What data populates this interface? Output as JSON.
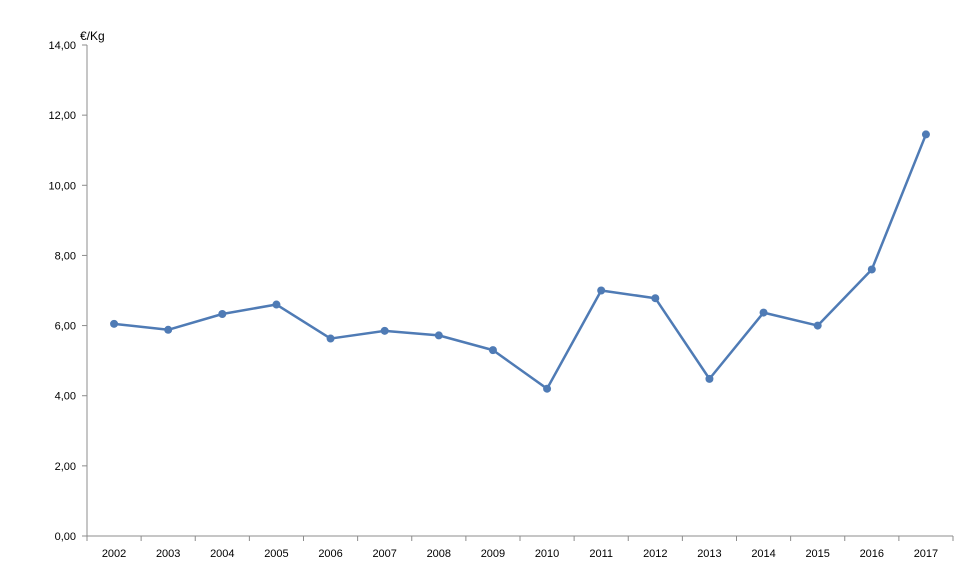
{
  "chart_data": {
    "type": "line",
    "title": "",
    "xlabel": "",
    "ylabel": "€/Kg",
    "ylim": [
      0,
      14
    ],
    "yticks": [
      "0,00",
      "2,00",
      "4,00",
      "6,00",
      "8,00",
      "10,00",
      "12,00",
      "14,00"
    ],
    "categories": [
      "2002",
      "2003",
      "2004",
      "2005",
      "2006",
      "2007",
      "2008",
      "2009",
      "2010",
      "2011",
      "2012",
      "2013",
      "2014",
      "2015",
      "2016",
      "2017"
    ],
    "series": [
      {
        "values": [
          6.05,
          5.88,
          6.33,
          6.6,
          5.63,
          5.85,
          5.72,
          5.3,
          4.2,
          7.0,
          6.78,
          4.48,
          6.37,
          6.0,
          7.6,
          11.45
        ]
      }
    ],
    "grid": false,
    "legend": "none",
    "line_color": "#4f7bb5",
    "axis_color": "#8c8c8c"
  }
}
